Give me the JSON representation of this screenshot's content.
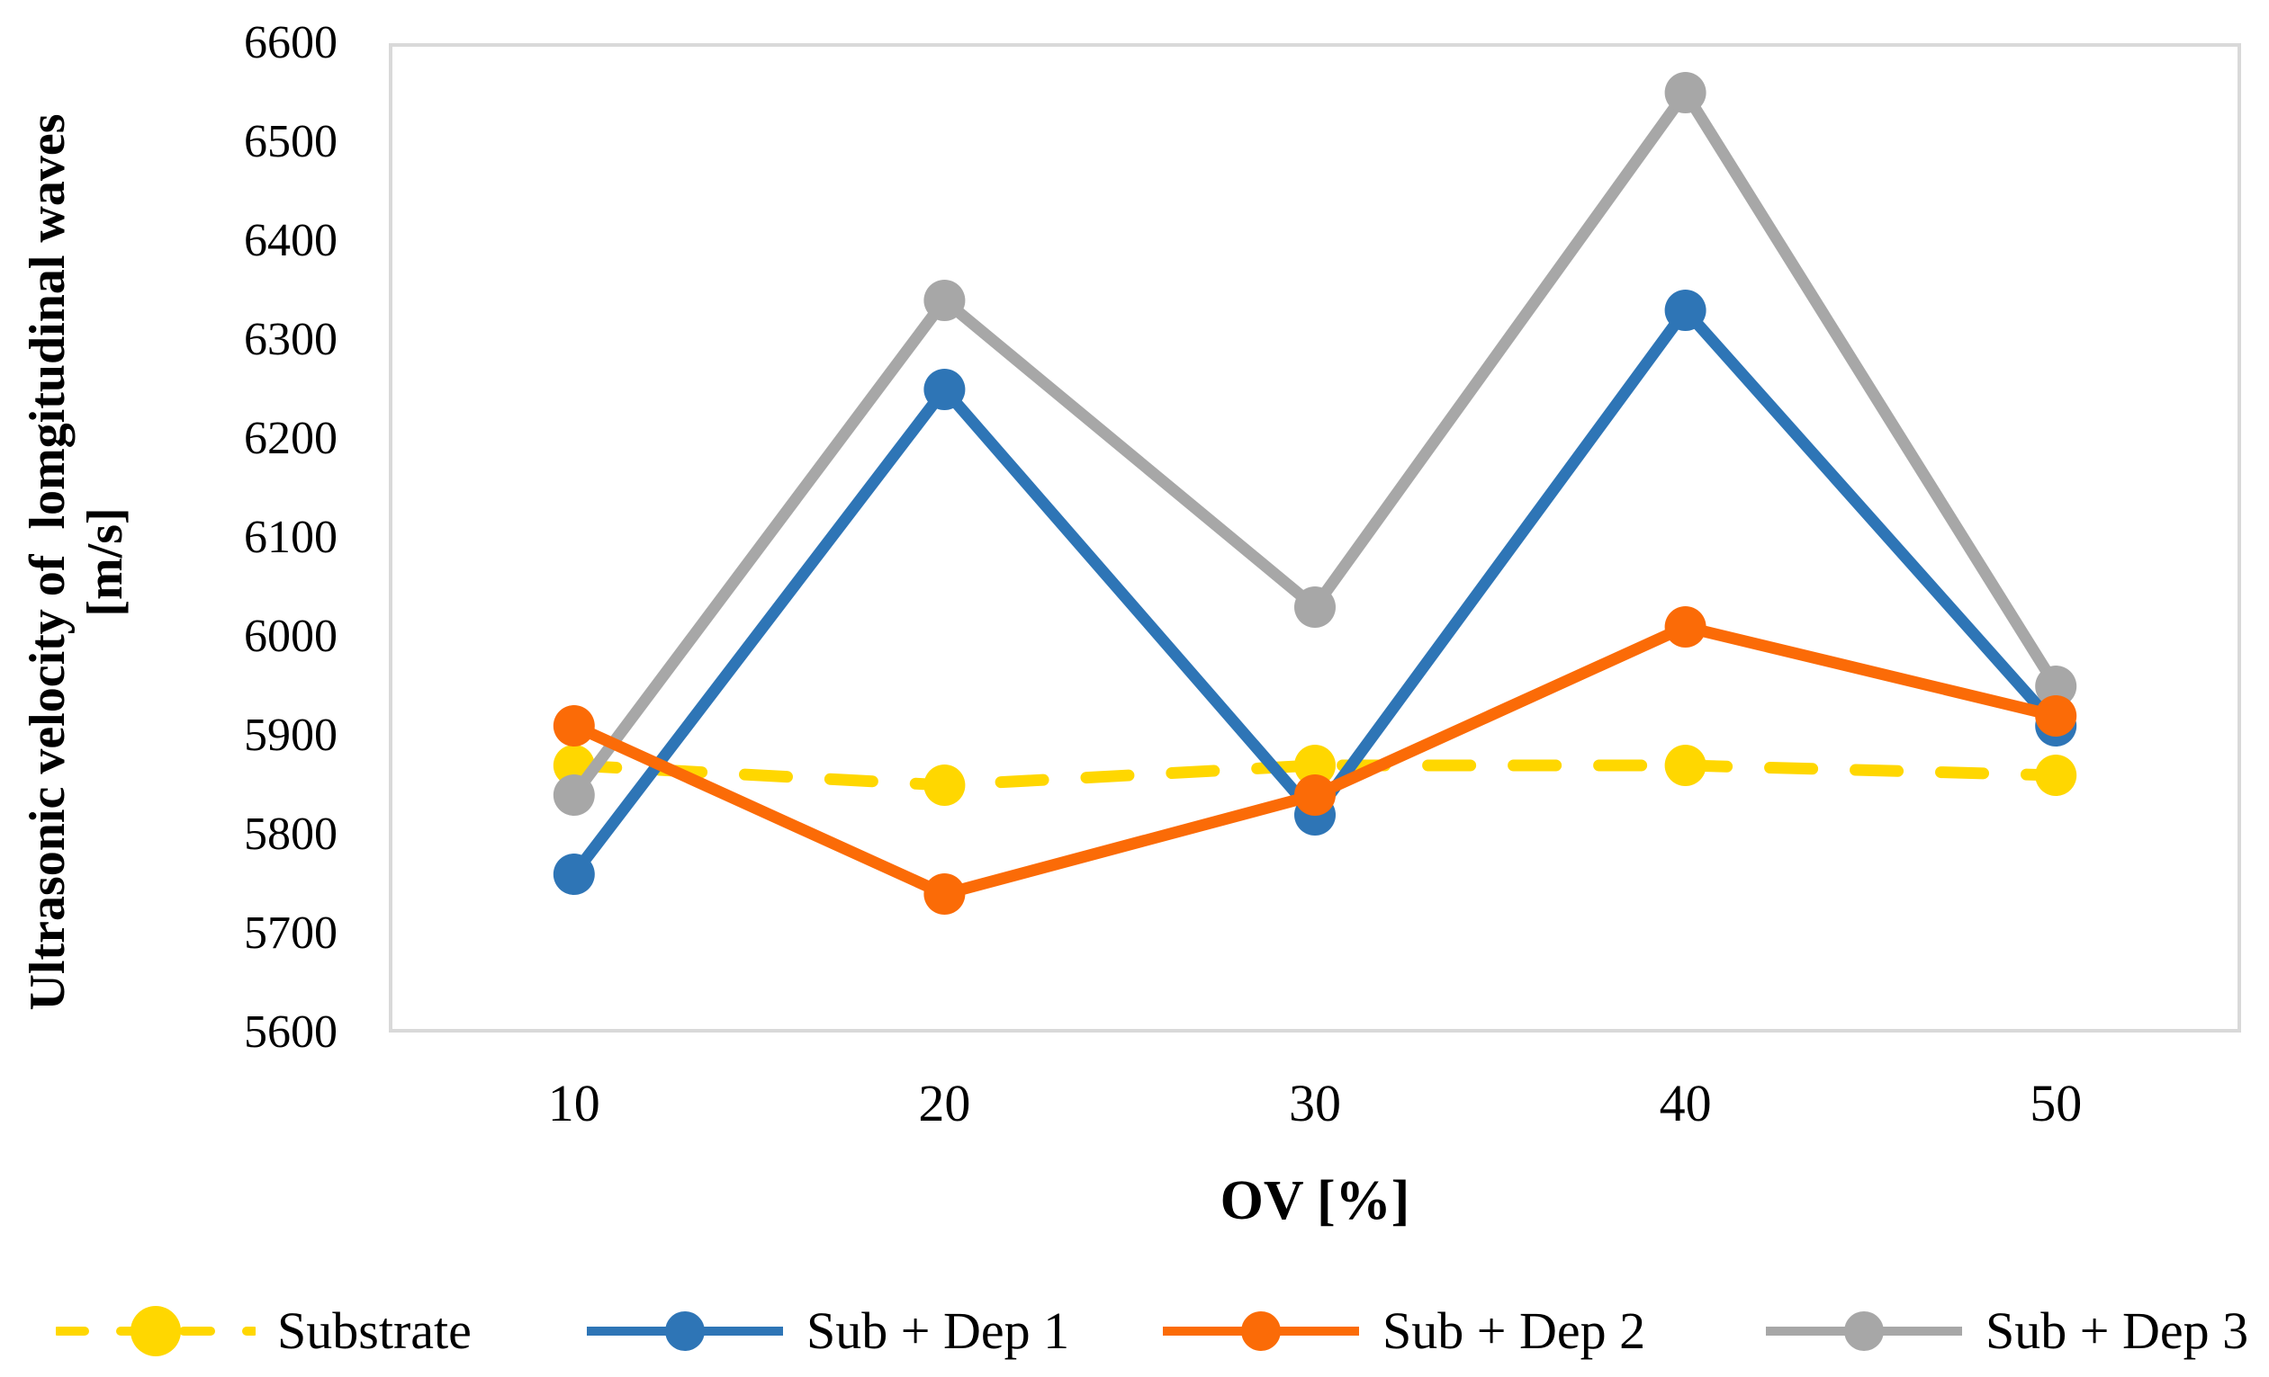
{
  "chart_data": {
    "type": "line",
    "title": "",
    "xlabel": "OV [%]",
    "ylabel": "Ultrasonic velocity of  lomgitudinal waves [m/s]",
    "ylabel_line1": "Ultrasonic velocity of  lomgitudinal waves",
    "ylabel_line2": "[m/s]",
    "x": [
      10,
      20,
      30,
      40,
      50
    ],
    "ylim": [
      5600,
      6600
    ],
    "ytick_step": 100,
    "grid": false,
    "legend_position": "bottom",
    "plot_border_color": "#D9D9D9",
    "series": [
      {
        "name": "Substrate",
        "color": "#FFD700",
        "dash": true,
        "marker": "circle",
        "values": [
          5870,
          5850,
          5870,
          5870,
          5860
        ]
      },
      {
        "name": "Sub + Dep 1",
        "color": "#2E75B6",
        "dash": false,
        "marker": "circle",
        "values": [
          5760,
          6250,
          5820,
          6330,
          5910
        ]
      },
      {
        "name": "Sub + Dep 2",
        "color": "#FB6B07",
        "dash": false,
        "marker": "circle",
        "values": [
          5910,
          5740,
          5840,
          6010,
          5920
        ]
      },
      {
        "name": "Sub + Dep 3",
        "color": "#A7A7A7",
        "dash": false,
        "marker": "circle",
        "values": [
          5840,
          6340,
          6030,
          6550,
          5950
        ]
      }
    ],
    "draw_order": [
      0,
      1,
      3,
      2
    ]
  }
}
